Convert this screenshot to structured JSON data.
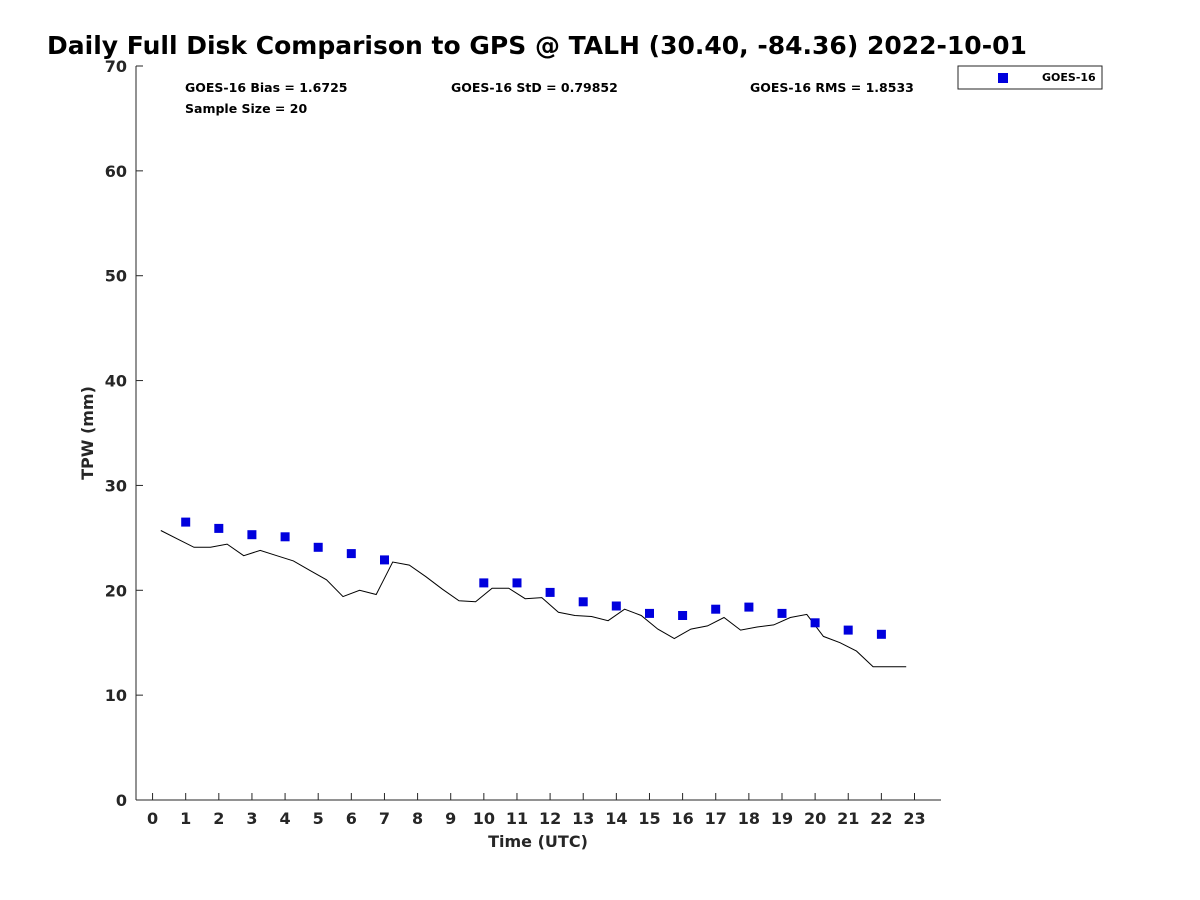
{
  "chart_data": {
    "type": "scatter",
    "title": "Daily Full Disk Comparison to GPS @ TALH (30.40, -84.36) 2022-10-01",
    "xlabel": "Time (UTC)",
    "ylabel": "TPW (mm)",
    "xlim": [
      -0.5,
      23.8
    ],
    "ylim": [
      0,
      70
    ],
    "x_ticks": [
      "0",
      "1",
      "2",
      "3",
      "4",
      "5",
      "6",
      "7",
      "8",
      "9",
      "10",
      "11",
      "12",
      "13",
      "14",
      "15",
      "16",
      "17",
      "18",
      "19",
      "20",
      "21",
      "22",
      "23"
    ],
    "y_ticks": [
      "0",
      "10",
      "20",
      "30",
      "40",
      "50",
      "60",
      "70"
    ],
    "grid": false,
    "legend": {
      "position": "top-right-outside",
      "entries": [
        "GOES-16"
      ]
    },
    "stats": {
      "bias": "GOES-16 Bias = 1.6725",
      "std": "GOES-16 StD = 0.79852",
      "rms": "GOES-16 RMS = 1.8533",
      "sample": "Sample Size = 20"
    },
    "series": [
      {
        "name": "GOES-16",
        "kind": "scatter",
        "marker": "square",
        "color": "#0000dd",
        "x": [
          1,
          2,
          3,
          4,
          5,
          6,
          7,
          10,
          11,
          12,
          13,
          14,
          15,
          16,
          17,
          18,
          19,
          20,
          21,
          22
        ],
        "y": [
          26.5,
          25.9,
          25.3,
          25.1,
          24.1,
          23.5,
          22.9,
          20.7,
          20.7,
          19.8,
          18.9,
          18.5,
          17.8,
          17.6,
          18.2,
          18.4,
          17.8,
          16.9,
          16.2,
          15.8
        ]
      },
      {
        "kind": "line",
        "color": "#000000",
        "x": [
          0.25,
          0.75,
          1.25,
          1.75,
          2.25,
          2.75,
          3.25,
          3.75,
          4.25,
          4.75,
          5.25,
          5.75,
          6.25,
          6.75,
          7.25,
          7.75,
          8.25,
          8.75,
          9.25,
          9.75,
          10.25,
          10.75,
          11.25,
          11.75,
          12.25,
          12.75,
          13.25,
          13.75,
          14.25,
          14.75,
          15.25,
          15.75,
          16.25,
          16.75,
          17.25,
          17.75,
          18.25,
          18.75,
          19.25,
          19.75,
          20.25,
          20.75,
          21.25,
          21.75,
          22.25,
          22.75
        ],
        "y": [
          25.7,
          24.9,
          24.1,
          24.1,
          24.4,
          23.3,
          23.8,
          23.3,
          22.8,
          21.9,
          21.0,
          19.4,
          20.0,
          19.6,
          22.7,
          22.4,
          21.3,
          20.1,
          19.0,
          18.9,
          20.2,
          20.2,
          19.2,
          19.3,
          17.9,
          17.6,
          17.5,
          17.1,
          18.2,
          17.6,
          16.3,
          15.4,
          16.3,
          16.6,
          17.4,
          16.2,
          16.5,
          16.7,
          17.4,
          17.7,
          15.6,
          15.0,
          14.2,
          12.7,
          12.7,
          12.7
        ]
      }
    ]
  }
}
